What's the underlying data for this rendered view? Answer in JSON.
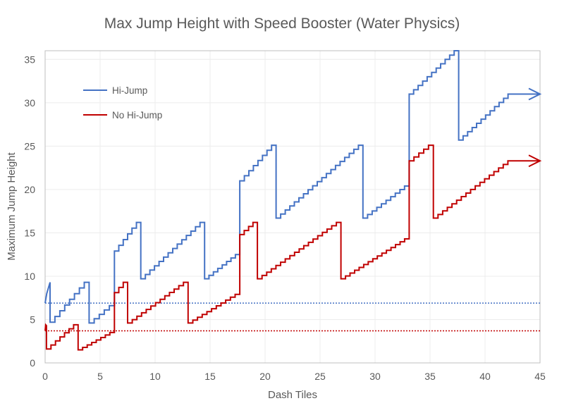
{
  "chart_data": {
    "type": "line",
    "title": "Max Jump Height with Speed Booster (Water Physics)",
    "xlabel": "Dash Tiles",
    "ylabel": "Maximum Jump Height",
    "xlim": [
      0,
      45
    ],
    "ylim": [
      0,
      36
    ],
    "xticks": [
      0,
      5,
      10,
      15,
      20,
      25,
      30,
      35,
      40,
      45
    ],
    "yticks": [
      0,
      5,
      10,
      15,
      20,
      25,
      30,
      35
    ],
    "grid": true,
    "legend_position": "top-left",
    "series": [
      {
        "name": "Hi-Jump",
        "color": "#4472C4",
        "initial_curve": [
          [
            0,
            6.9
          ],
          [
            0.15,
            8.0
          ],
          [
            0.45,
            9.3
          ]
        ],
        "ramps": [
          {
            "x": [
              0.45,
              4.0
            ],
            "y": [
              4.7,
              9.3
            ]
          },
          {
            "x": [
              4.0,
              6.3
            ],
            "y": [
              4.6,
              6.6
            ]
          },
          {
            "x": [
              6.3,
              8.7
            ],
            "y": [
              12.9,
              16.2
            ]
          },
          {
            "x": [
              8.7,
              14.5
            ],
            "y": [
              9.7,
              16.2
            ]
          },
          {
            "x": [
              14.5,
              17.7
            ],
            "y": [
              9.7,
              12.5
            ]
          },
          {
            "x": [
              17.7,
              21.0
            ],
            "y": [
              21.0,
              25.1
            ]
          },
          {
            "x": [
              21.0,
              28.9
            ],
            "y": [
              16.7,
              25.1
            ]
          },
          {
            "x": [
              28.9,
              33.1
            ],
            "y": [
              16.7,
              20.4
            ]
          },
          {
            "x": [
              33.1,
              37.6
            ],
            "y": [
              31.0,
              36.0
            ]
          },
          {
            "x": [
              37.6,
              42.5
            ],
            "y": [
              25.7,
              31.0
            ]
          }
        ],
        "extends_to": 45,
        "threshold": 6.9
      },
      {
        "name": "No Hi-Jump",
        "color": "#C00000",
        "initial_curve": [
          [
            0,
            3.7
          ],
          [
            0.05,
            4.4
          ],
          [
            0.12,
            4.3
          ]
        ],
        "ramps": [
          {
            "x": [
              0.12,
              3.0
            ],
            "y": [
              1.6,
              4.4
            ]
          },
          {
            "x": [
              3.0,
              6.3
            ],
            "y": [
              1.5,
              3.5
            ]
          },
          {
            "x": [
              6.3,
              7.5
            ],
            "y": [
              8.1,
              9.3
            ]
          },
          {
            "x": [
              7.5,
              13.0
            ],
            "y": [
              4.6,
              9.3
            ]
          },
          {
            "x": [
              13.0,
              17.7
            ],
            "y": [
              4.6,
              7.9
            ]
          },
          {
            "x": [
              17.7,
              19.3
            ],
            "y": [
              14.8,
              16.2
            ]
          },
          {
            "x": [
              19.3,
              26.9
            ],
            "y": [
              9.7,
              16.2
            ]
          },
          {
            "x": [
              26.9,
              33.1
            ],
            "y": [
              9.7,
              14.3
            ]
          },
          {
            "x": [
              33.1,
              35.3
            ],
            "y": [
              23.3,
              25.1
            ]
          },
          {
            "x": [
              35.3,
              42.5
            ],
            "y": [
              16.7,
              23.3
            ]
          }
        ],
        "extends_to": 45,
        "threshold": 3.7
      }
    ]
  }
}
